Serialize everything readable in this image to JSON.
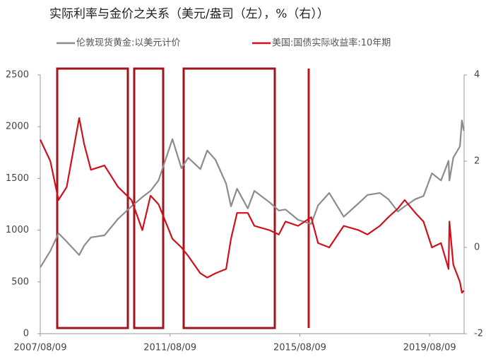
{
  "chart_data": {
    "type": "line",
    "title": "实际利率与金价之关系（美元/盎司（左），%（右））",
    "x": [
      "2007/08/09",
      "2007/12/01",
      "2008/03/01",
      "2008/06/01",
      "2008/10/20",
      "2008/12/15",
      "2009/03/01",
      "2009/08/01",
      "2010/01/01",
      "2010/06/01",
      "2010/10/01",
      "2011/01/01",
      "2011/04/01",
      "2011/09/05",
      "2011/12/15",
      "2012/03/01",
      "2012/07/15",
      "2012/10/01",
      "2013/01/01",
      "2013/05/01",
      "2013/06/25",
      "2013/09/01",
      "2013/12/31",
      "2014/03/15",
      "2014/09/01",
      "2014/12/15",
      "2015/03/01",
      "2015/07/20",
      "2015/12/15",
      "2016/03/01",
      "2016/07/05",
      "2016/12/15",
      "2017/06/01",
      "2017/09/08",
      "2018/01/25",
      "2018/05/01",
      "2018/08/16",
      "2018/11/01",
      "2019/03/01",
      "2019/06/01",
      "2019/09/04",
      "2019/12/15",
      "2020/03/09",
      "2020/03/19",
      "2020/05/01",
      "2020/07/15",
      "2020/08/06",
      "2020/08/28"
    ],
    "series": [
      {
        "name": "伦敦现货黄金:以美元计价",
        "color": "#8c8c8c",
        "values": [
          640,
          800,
          970,
          890,
          760,
          850,
          930,
          950,
          1110,
          1230,
          1320,
          1380,
          1480,
          1880,
          1600,
          1700,
          1590,
          1770,
          1680,
          1450,
          1230,
          1400,
          1210,
          1380,
          1270,
          1190,
          1200,
          1100,
          1060,
          1240,
          1360,
          1130,
          1260,
          1340,
          1360,
          1300,
          1180,
          1230,
          1300,
          1330,
          1550,
          1480,
          1670,
          1480,
          1700,
          1810,
          2060,
          1960
        ]
      },
      {
        "name": "美国:国债实际收益率:10年期",
        "color": "#d0101b",
        "axis": "y2",
        "values": [
          2.5,
          2.0,
          1.1,
          1.4,
          3.0,
          2.4,
          1.8,
          1.9,
          1.4,
          1.1,
          0.4,
          1.2,
          1.0,
          0.2,
          0.0,
          -0.2,
          -0.6,
          -0.7,
          -0.6,
          -0.5,
          0.2,
          0.8,
          0.8,
          0.5,
          0.4,
          0.3,
          0.6,
          0.5,
          0.7,
          0.1,
          0.0,
          0.5,
          0.4,
          0.3,
          0.5,
          0.7,
          0.9,
          1.1,
          0.8,
          0.6,
          0.0,
          0.1,
          -0.5,
          0.6,
          -0.4,
          -0.8,
          -1.05,
          -1.0
        ]
      }
    ],
    "xlim": [
      "2007/08/09",
      "2020/08/31"
    ],
    "xticks": [
      "2007/08/09",
      "2011/08/09",
      "2015/08/09",
      "2019/08/09"
    ],
    "ylim": [
      0,
      2500
    ],
    "yticks": [
      0,
      500,
      1000,
      1500,
      2000,
      2500
    ],
    "y2lim": [
      -2,
      4
    ],
    "y2ticks": [
      -2,
      0,
      2,
      4
    ]
  }
}
